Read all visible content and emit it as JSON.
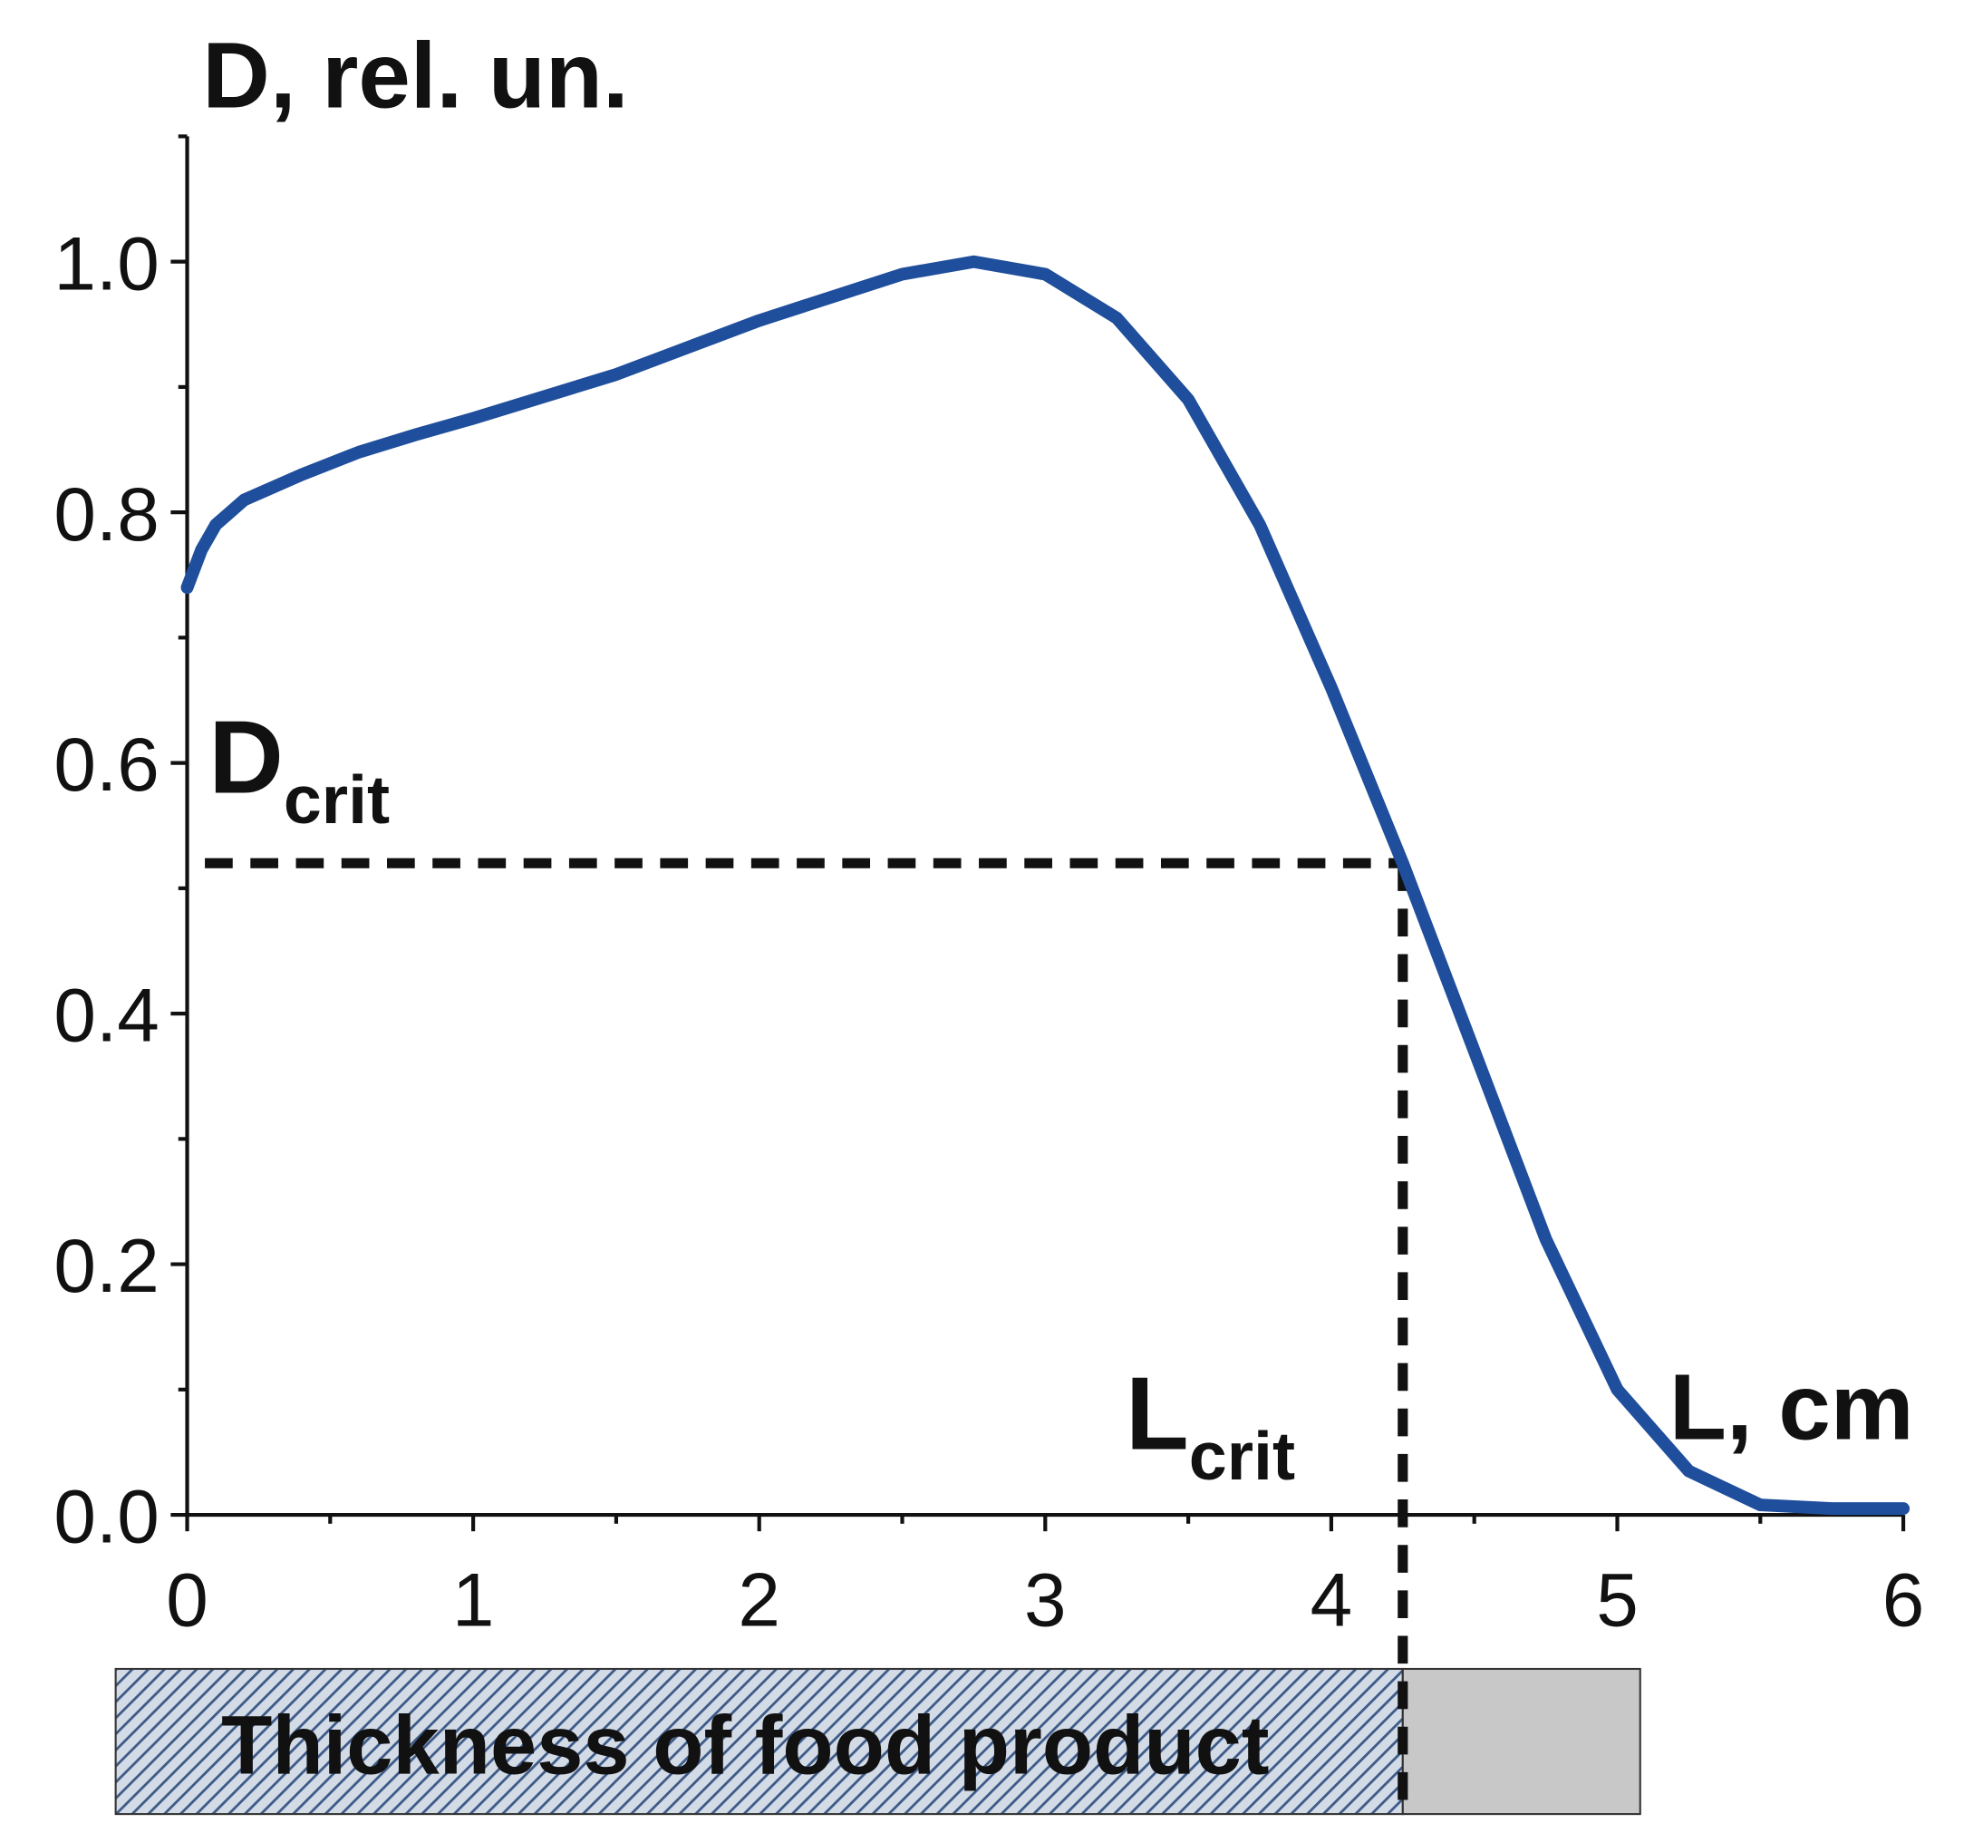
{
  "chart_data": {
    "type": "line",
    "y_axis_label": "D, rel. un.",
    "x_axis_label": "L, cm",
    "x": [
      0,
      0.05,
      0.1,
      0.2,
      0.4,
      0.6,
      0.8,
      1.0,
      1.5,
      2.0,
      2.5,
      2.75,
      3.0,
      3.25,
      3.5,
      3.75,
      4.0,
      4.25,
      4.5,
      4.75,
      5.0,
      5.25,
      5.5,
      5.75,
      6.0
    ],
    "series": [
      {
        "color": "#1f4e9c",
        "values": [
          0.74,
          0.77,
          0.79,
          0.81,
          0.83,
          0.848,
          0.862,
          0.875,
          0.91,
          0.953,
          0.99,
          1.0,
          0.99,
          0.955,
          0.89,
          0.79,
          0.66,
          0.52,
          0.37,
          0.22,
          0.1,
          0.035,
          0.008,
          0.005,
          0.005
        ]
      }
    ],
    "xlim": [
      0,
      6
    ],
    "ylim": [
      0,
      1.1
    ],
    "xticks": [
      0,
      1,
      2,
      3,
      4,
      5,
      6
    ],
    "yticks": [
      {
        "value": 0,
        "label": "0.0"
      },
      0.2,
      0.4,
      0.6,
      0.8,
      {
        "value": 1,
        "label": "1.0"
      }
    ],
    "critical_point": {
      "x": 4.25,
      "y": 0.52
    },
    "d_crit_label": {
      "main": "D",
      "sub": "crit"
    },
    "l_crit_label": {
      "main": "L",
      "sub": "crit"
    },
    "product_bar": {
      "label": "Thickness of food product",
      "xlim": [
        -0.25,
        5.08
      ]
    }
  }
}
